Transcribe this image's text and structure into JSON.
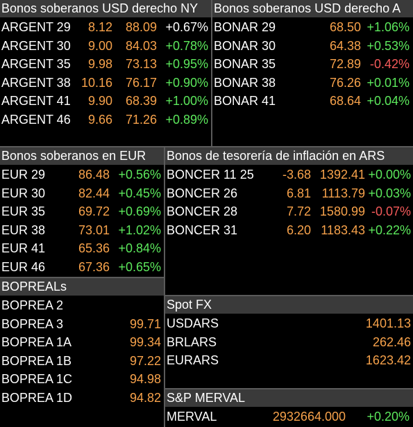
{
  "usd_ny": {
    "title": "Bonos soberanos USD derecho NY",
    "rows": [
      {
        "name": "ARGENT 29",
        "yield": "8.12",
        "price": "88.09",
        "chg": "+0.67%",
        "chg_color": "white"
      },
      {
        "name": "ARGENT 30",
        "yield": "9.00",
        "price": "84.03",
        "chg": "+0.78%",
        "chg_color": "green"
      },
      {
        "name": "ARGENT 35",
        "yield": "9.98",
        "price": "73.13",
        "chg": "+0.95%",
        "chg_color": "green"
      },
      {
        "name": "ARGENT 38",
        "yield": "10.16",
        "price": "76.17",
        "chg": "+0.90%",
        "chg_color": "green"
      },
      {
        "name": "ARGENT 41",
        "yield": "9.90",
        "price": "68.39",
        "chg": "+1.00%",
        "chg_color": "green"
      },
      {
        "name": "ARGENT 46",
        "yield": "9.66",
        "price": "71.26",
        "chg": "+0.89%",
        "chg_color": "green"
      }
    ]
  },
  "usd_ar": {
    "title": "Bonos soberanos USD derecho A",
    "rows": [
      {
        "name": "BONAR 29",
        "price": "68.50",
        "chg": "+1.06%",
        "chg_color": "green"
      },
      {
        "name": "BONAR 30",
        "price": "64.38",
        "chg": "+0.53%",
        "chg_color": "green"
      },
      {
        "name": "BONAR 35",
        "price": "72.89",
        "chg": "-0.42%",
        "chg_color": "red"
      },
      {
        "name": "BONAR 38",
        "price": "76.26",
        "chg": "+0.01%",
        "chg_color": "green"
      },
      {
        "name": "BONAR 41",
        "price": "68.64",
        "chg": "+0.04%",
        "chg_color": "green"
      }
    ]
  },
  "eur": {
    "title": "Bonos soberanos en EUR",
    "rows": [
      {
        "name": "EUR 29",
        "price": "86.48",
        "chg": "+0.56%",
        "chg_color": "green"
      },
      {
        "name": "EUR 30",
        "price": "82.44",
        "chg": "+0.45%",
        "chg_color": "green"
      },
      {
        "name": "EUR 35",
        "price": "69.72",
        "chg": "+0.69%",
        "chg_color": "green"
      },
      {
        "name": "EUR 38",
        "price": "73.01",
        "chg": "+1.02%",
        "chg_color": "green"
      },
      {
        "name": "EUR 41",
        "price": "65.36",
        "chg": "+0.84%",
        "chg_color": "green"
      },
      {
        "name": "EUR 46",
        "price": "67.36",
        "chg": "+0.65%",
        "chg_color": "green"
      }
    ]
  },
  "cer": {
    "title": "Bonos de tesorería de inflación en ARS",
    "rows": [
      {
        "name": "BONCER 11 25",
        "yield": "-3.68",
        "price": "1392.41",
        "chg": "+0.00%",
        "chg_color": "green"
      },
      {
        "name": "BONCER 26",
        "yield": "6.81",
        "price": "1113.79",
        "chg": "+0.03%",
        "chg_color": "green"
      },
      {
        "name": "BONCER 28",
        "yield": "7.72",
        "price": "1580.99",
        "chg": "-0.07%",
        "chg_color": "red"
      },
      {
        "name": "BONCER 31",
        "yield": "6.20",
        "price": "1183.43",
        "chg": "+0.22%",
        "chg_color": "green"
      }
    ]
  },
  "bopreal": {
    "title": "BOPREALs",
    "rows": [
      {
        "name": "BOPREA 2",
        "price": ""
      },
      {
        "name": "BOPREA 3",
        "price": "99.71"
      },
      {
        "name": "BOPREA 1A",
        "price": "99.34"
      },
      {
        "name": "BOPREA 1B",
        "price": "97.22"
      },
      {
        "name": "BOPREA 1C",
        "price": "94.98"
      },
      {
        "name": "BOPREA 1D",
        "price": "94.82"
      }
    ]
  },
  "fx": {
    "title": "Spot FX",
    "rows": [
      {
        "name": "USDARS",
        "price": "1401.13"
      },
      {
        "name": "BRLARS",
        "price": "262.46"
      },
      {
        "name": "EURARS",
        "price": "1623.42"
      }
    ]
  },
  "merval": {
    "title": "S&P MERVAL",
    "name": "MERVAL",
    "price": "2932664.000",
    "chg": "+0.20%"
  },
  "colors": {
    "orange": "#f7a24b",
    "green": "#5ce85c",
    "red": "#f45a5a",
    "header_bg": "#3a3a3a"
  }
}
